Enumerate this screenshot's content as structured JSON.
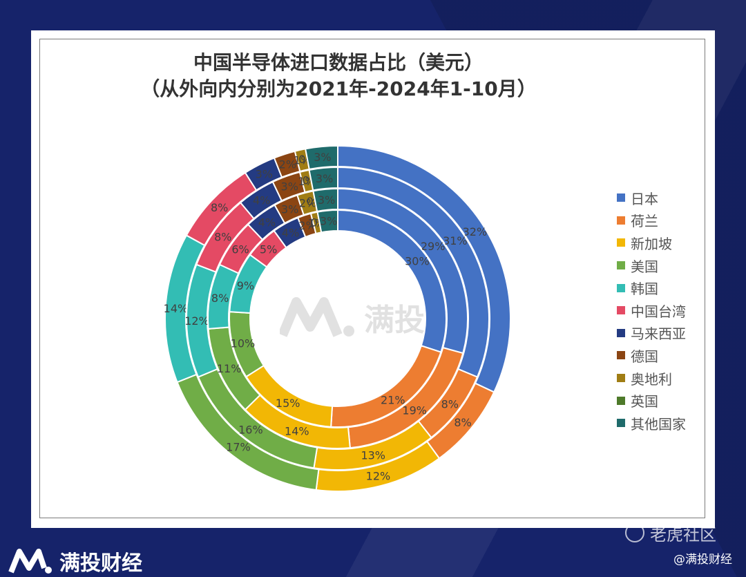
{
  "title_line1": "中国半导体进口数据占比（美元）",
  "title_line2": "（从外向内分别为2021年-2024年1-10月）",
  "brand": "满投财经",
  "watermark_community": "老虎社区",
  "watermark_handle": "@满投财经",
  "center_watermark": "满投财经",
  "chart_data": {
    "type": "pie",
    "subtype": "donut-multi-ring",
    "title": "中国半导体进口数据占比（美元）",
    "subtitle": "（从外向内分别为2021年-2024年1-10月）",
    "legend_position": "right",
    "categories": [
      "日本",
      "荷兰",
      "新加坡",
      "美国",
      "韩国",
      "中国台湾",
      "马来西亚",
      "德国",
      "奥地利",
      "英国",
      "其他国家"
    ],
    "colors": [
      "#4472c4",
      "#ed7d31",
      "#f2b705",
      "#70ad47",
      "#33bdb4",
      "#e44a64",
      "#243b82",
      "#8b4513",
      "#a07d14",
      "#4e7a2a",
      "#1f6b6b"
    ],
    "rings_outer_to_inner": [
      "2021年",
      "2022年",
      "2023年",
      "2024年1-10月"
    ],
    "series": [
      {
        "values": [
          32,
          8,
          12,
          17,
          14,
          8,
          3,
          2,
          1,
          0,
          3
        ],
        "labels": [
          "32%",
          "8%",
          "12%",
          "17%",
          "14%",
          "8%",
          "3%",
          "2%",
          "1%",
          "0%",
          "3%"
        ]
      },
      {
        "values": [
          31,
          8,
          13,
          16,
          12,
          8,
          4,
          3,
          1,
          0,
          3
        ],
        "labels": [
          "31%",
          "8%",
          "13%",
          "16%",
          "12%",
          "8%",
          "4%",
          "3%",
          "1%",
          "0%",
          "3%"
        ]
      },
      {
        "values": [
          29,
          19,
          14,
          11,
          8,
          6,
          4,
          3,
          2,
          0,
          3
        ],
        "labels": [
          "29%",
          "19%",
          "14%",
          "11%",
          "8%",
          "6%",
          "4%",
          "3%",
          "2%",
          "0%",
          "3%"
        ]
      },
      {
        "values": [
          30,
          21,
          15,
          10,
          9,
          5,
          4,
          2,
          1,
          0,
          3
        ],
        "labels": [
          "30%",
          "21%",
          "15%",
          "10%",
          "9%",
          "5%",
          "4%",
          "2%",
          "1%",
          "0%",
          "3%"
        ]
      }
    ]
  }
}
